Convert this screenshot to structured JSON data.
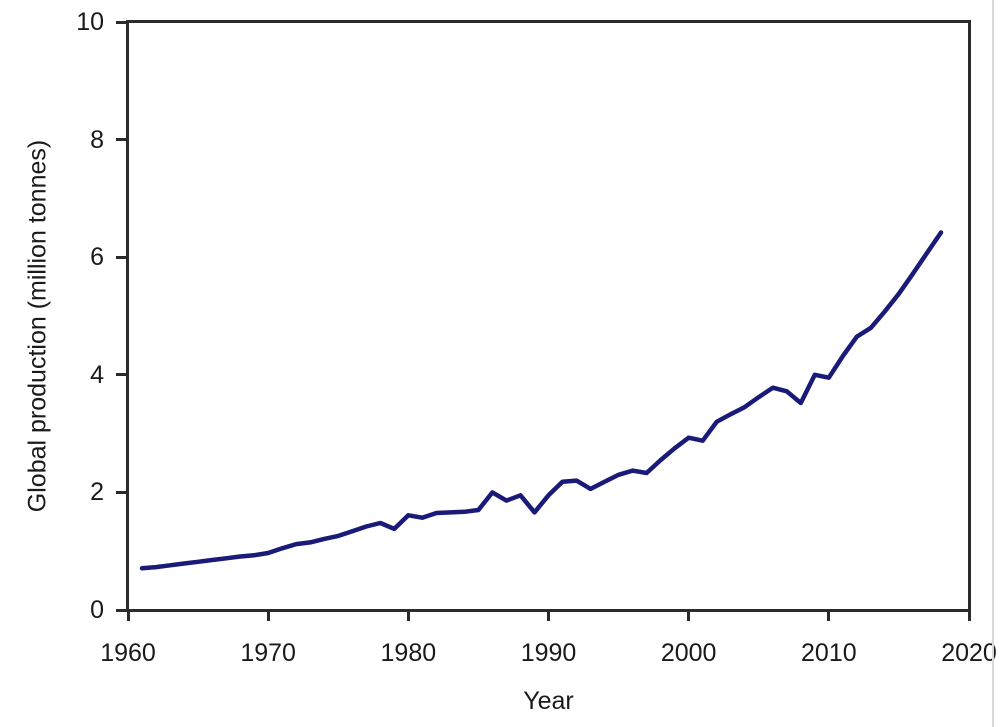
{
  "figure": {
    "background": "#ffffff",
    "axis_color": "#2b2b2b",
    "text_color": "#1a1a1a",
    "line_color": "#1a1a78"
  },
  "chart_data": {
    "type": "line",
    "title": "",
    "xlabel": "Year",
    "ylabel": "Global production (million tonnes)",
    "xlim": [
      1960,
      2020
    ],
    "ylim": [
      0,
      10
    ],
    "x_ticks": [
      1960,
      1970,
      1980,
      1990,
      2000,
      2010,
      2020
    ],
    "y_ticks": [
      0,
      2,
      4,
      6,
      8,
      10
    ],
    "grid": false,
    "legend": null,
    "series": [
      {
        "name": "Global production",
        "color": "#1a1a78",
        "x": [
          1961,
          1962,
          1963,
          1964,
          1965,
          1966,
          1967,
          1968,
          1969,
          1970,
          1971,
          1972,
          1973,
          1974,
          1975,
          1976,
          1977,
          1978,
          1979,
          1980,
          1981,
          1982,
          1983,
          1984,
          1985,
          1986,
          1987,
          1988,
          1989,
          1990,
          1991,
          1992,
          1993,
          1994,
          1995,
          1996,
          1997,
          1998,
          1999,
          2000,
          2001,
          2002,
          2003,
          2004,
          2005,
          2006,
          2007,
          2008,
          2009,
          2010,
          2011,
          2012,
          2013,
          2014,
          2015,
          2016,
          2017,
          2018
        ],
        "y": [
          0.71,
          0.73,
          0.76,
          0.79,
          0.82,
          0.85,
          0.88,
          0.91,
          0.93,
          0.97,
          1.05,
          1.12,
          1.15,
          1.21,
          1.26,
          1.34,
          1.42,
          1.48,
          1.38,
          1.61,
          1.57,
          1.65,
          1.66,
          1.67,
          1.7,
          2.0,
          1.86,
          1.95,
          1.66,
          1.95,
          2.18,
          2.2,
          2.06,
          2.18,
          2.3,
          2.37,
          2.33,
          2.55,
          2.75,
          2.93,
          2.88,
          3.2,
          3.33,
          3.45,
          3.62,
          3.78,
          3.72,
          3.52,
          4.0,
          3.95,
          4.32,
          4.65,
          4.8,
          5.08,
          5.38,
          5.72,
          6.07,
          6.42
        ]
      }
    ]
  }
}
